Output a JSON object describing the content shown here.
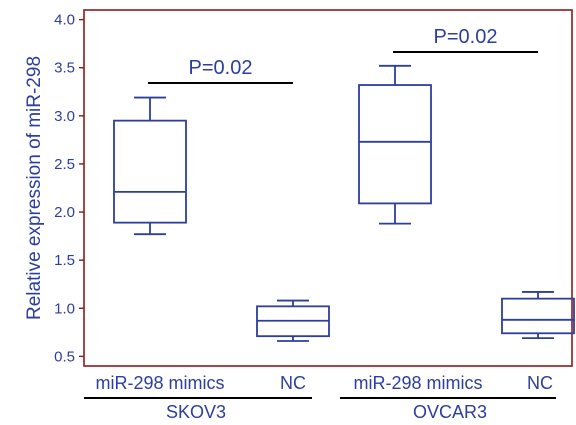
{
  "chart_data": {
    "type": "box",
    "ylabel": "Relative expression of miR-298",
    "ylim": [
      0.4,
      4.1
    ],
    "yticks": [
      "0.5",
      "1.0",
      "1.5",
      "2.0",
      "2.5",
      "3.0",
      "3.5",
      "4.0"
    ],
    "ytick_values": [
      0.5,
      1.0,
      1.5,
      2.0,
      2.5,
      3.0,
      3.5,
      4.0
    ],
    "categories": [
      "miR-298 mimics",
      "NC",
      "miR-298 mimics",
      "NC"
    ],
    "groups": [
      {
        "label": "SKOV3",
        "members": [
          0,
          1
        ]
      },
      {
        "label": "OVCAR3",
        "members": [
          2,
          3
        ]
      }
    ],
    "boxes": [
      {
        "category": "miR-298 mimics",
        "group": "SKOV3",
        "min": 1.77,
        "q1": 1.89,
        "median": 2.21,
        "q3": 2.95,
        "max": 3.19
      },
      {
        "category": "NC",
        "group": "SKOV3",
        "min": 0.66,
        "q1": 0.71,
        "median": 0.87,
        "q3": 1.02,
        "max": 1.08
      },
      {
        "category": "miR-298 mimics",
        "group": "OVCAR3",
        "min": 1.88,
        "q1": 2.09,
        "median": 2.73,
        "q3": 3.32,
        "max": 3.52
      },
      {
        "category": "NC",
        "group": "OVCAR3",
        "min": 0.69,
        "q1": 0.74,
        "median": 0.88,
        "q3": 1.1,
        "max": 1.17
      }
    ],
    "annotations": [
      {
        "text": "P=0.02",
        "group": "SKOV3"
      },
      {
        "text": "P=0.02",
        "group": "OVCAR3"
      }
    ],
    "colors": {
      "box": "#2c3e9e",
      "axis": "#8b1a1a",
      "text": "#2c3e9e",
      "bracket": "#000000"
    }
  }
}
